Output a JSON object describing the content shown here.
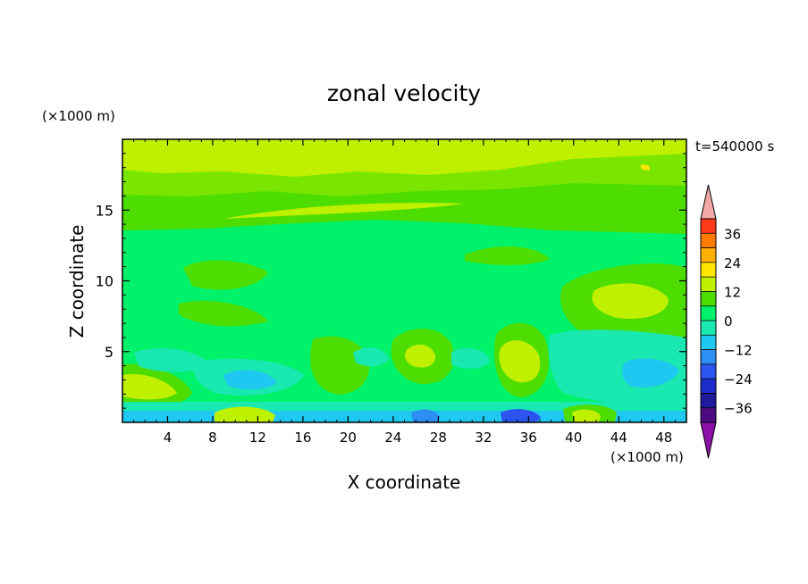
{
  "chart_data": {
    "type": "heatmap",
    "title": "zonal velocity",
    "xlabel": "X coordinate",
    "ylabel": "Z coordinate",
    "x_unit": "(×1000 m)",
    "y_unit": "(×1000 m)",
    "time_label": "t=540000 s",
    "xlim": [
      0,
      50
    ],
    "ylim": [
      0,
      20
    ],
    "xticks": [
      4,
      8,
      12,
      16,
      20,
      24,
      28,
      32,
      36,
      40,
      44,
      48
    ],
    "yticks": [
      5,
      10,
      15
    ],
    "colorbar": {
      "levels": [
        -42,
        -36,
        -30,
        -24,
        -18,
        -12,
        -6,
        0,
        6,
        12,
        18,
        24,
        30,
        36,
        42
      ],
      "colors": [
        "#4d0d80",
        "#1f1a9a",
        "#1e2ccc",
        "#2b55ee",
        "#2d8ff5",
        "#1fc8f0",
        "#19e8b0",
        "#00f26a",
        "#4ddd00",
        "#bff000",
        "#ffe600",
        "#ffb000",
        "#ff7a00",
        "#ff3a1a",
        "#e01010"
      ],
      "under_color": "#8a10a8",
      "over_color": "#f5a8a8",
      "tick_labels": [
        "36",
        "24",
        "12",
        "0",
        "−12",
        "−24",
        "−36"
      ],
      "tick_values": [
        36,
        24,
        12,
        0,
        -12,
        -24,
        -36
      ],
      "extend": "both"
    }
  }
}
